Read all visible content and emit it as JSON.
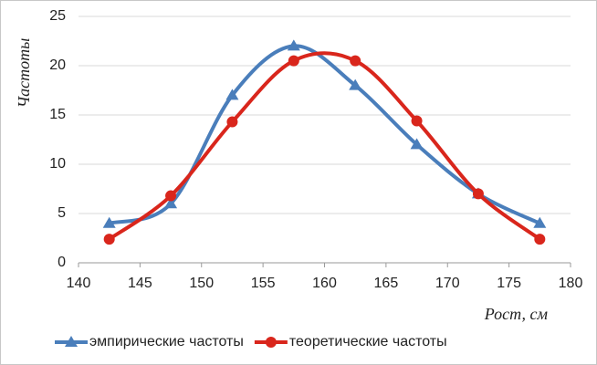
{
  "chart_data": {
    "type": "line",
    "x_label": "Рост, см",
    "y_label": "Частоты",
    "x": [
      142.5,
      147.5,
      152.5,
      157.5,
      162.5,
      167.5,
      172.5,
      177.5
    ],
    "series": [
      {
        "name": "эмпирические частоты",
        "color": "#4a7ebb",
        "marker": "triangle",
        "values": [
          4,
          6,
          17,
          22,
          18,
          12,
          7,
          4
        ]
      },
      {
        "name": "теоретические частоты",
        "color": "#d9261c",
        "marker": "circle",
        "values": [
          2.4,
          6.8,
          14.3,
          20.5,
          20.5,
          14.4,
          7.0,
          2.4
        ]
      }
    ],
    "xlim": [
      140,
      180
    ],
    "xticks": [
      140,
      145,
      150,
      155,
      160,
      165,
      170,
      175,
      180
    ],
    "ylim": [
      0,
      25
    ],
    "yticks": [
      0,
      5,
      10,
      15,
      20,
      25
    ],
    "grid": true,
    "smooth": true,
    "legend": "bottom"
  }
}
